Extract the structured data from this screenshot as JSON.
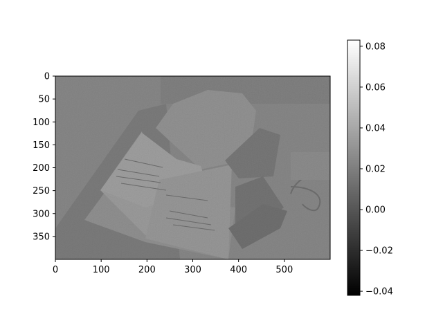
{
  "chart_data": {
    "type": "heatmap",
    "title": "",
    "xlabel": "",
    "ylabel": "",
    "xlim": [
      0,
      600
    ],
    "ylim": [
      400,
      0
    ],
    "x_ticks": [
      0,
      100,
      200,
      300,
      400,
      500
    ],
    "y_ticks": [
      0,
      50,
      100,
      150,
      200,
      250,
      300,
      350
    ],
    "colormap": "gray",
    "colorbar": {
      "range": [
        -0.042,
        0.083
      ],
      "ticks": [
        0.08,
        0.06,
        0.04,
        0.02,
        0.0,
        -0.02,
        -0.04
      ],
      "tick_labels": [
        "0.08",
        "0.06",
        "0.04",
        "0.02",
        "0.00",
        "−0.02",
        "−0.04"
      ]
    },
    "image_description_shapes": {
      "background_value": 0.018,
      "book_page_value": 0.03,
      "dark_object_value": 0.005
    },
    "grid": false
  }
}
